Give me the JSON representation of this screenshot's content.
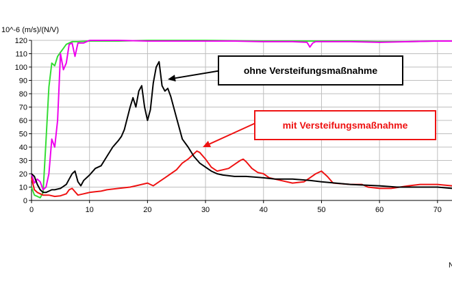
{
  "chart_data": {
    "type": "line",
    "ylabel": "10^-6 (m/s)/(N/V)",
    "xlim": [
      0,
      72.5
    ],
    "ylim": [
      0,
      120
    ],
    "x_ticks": [
      0,
      10,
      20,
      30,
      40,
      50,
      60,
      70
    ],
    "y_ticks": [
      0,
      10,
      20,
      30,
      40,
      50,
      60,
      70,
      80,
      90,
      100,
      110,
      120
    ],
    "grid": true,
    "series": [
      {
        "color": "#33dd33",
        "x": [
          0,
          0.5,
          1,
          1.5,
          2,
          2.5,
          3,
          3.5,
          4,
          4.5,
          5,
          5.5,
          6,
          7,
          8,
          10,
          15,
          20,
          30,
          40,
          48,
          50,
          55,
          60,
          65,
          70,
          72.5
        ],
        "y": [
          10,
          4,
          3,
          2,
          6,
          45,
          85,
          103,
          101,
          108,
          111,
          114,
          117,
          119,
          119,
          119.5,
          119.5,
          120,
          120,
          119.5,
          119.5,
          119.5,
          119.5,
          119,
          119,
          119.5,
          119.5
        ]
      },
      {
        "color": "#ee00ee",
        "x": [
          0,
          0.5,
          1,
          1.5,
          2,
          2.5,
          3,
          3.5,
          4,
          4.5,
          5,
          5.5,
          6,
          6.5,
          7,
          7.5,
          8,
          9,
          10,
          15,
          20,
          25,
          30,
          35,
          40,
          45,
          47.5,
          48,
          48.5,
          49,
          50,
          55,
          60,
          65,
          70,
          72.5
        ],
        "y": [
          20,
          13,
          16,
          14,
          8,
          10,
          20,
          46,
          40,
          60,
          110,
          98,
          103,
          117,
          118,
          108,
          118,
          118,
          120,
          120,
          119.5,
          119.5,
          119.5,
          119.5,
          119,
          119,
          118.5,
          115,
          118,
          119,
          119,
          119,
          118.5,
          119,
          119.5,
          119.5
        ]
      },
      {
        "color": "#ee1111",
        "x": [
          0,
          0.5,
          1,
          2,
          3,
          4,
          5,
          6,
          6.5,
          7,
          8,
          9,
          10,
          11,
          12,
          13,
          15,
          17,
          18,
          19,
          20,
          21,
          22,
          23,
          24,
          25,
          26,
          27,
          28,
          28.5,
          29,
          30,
          31,
          32,
          33,
          34,
          35,
          36,
          36.5,
          37,
          38,
          39,
          40,
          41,
          43,
          45,
          47,
          48,
          49,
          50,
          51,
          52,
          55,
          57,
          58,
          60,
          62,
          65,
          67,
          70,
          72.5
        ],
        "y": [
          17,
          8,
          6,
          4,
          4,
          3,
          3.5,
          5,
          8,
          9,
          4,
          5,
          6,
          6.5,
          7,
          8,
          9,
          10,
          11,
          12,
          13,
          11,
          14,
          17,
          20,
          23,
          28,
          31,
          35,
          37,
          36,
          31,
          25,
          22,
          23,
          24,
          27,
          30,
          31,
          29,
          24,
          21,
          20,
          17,
          15,
          13,
          14,
          17,
          20,
          22,
          18,
          13,
          12,
          12,
          10,
          9,
          9,
          11,
          12,
          12,
          11
        ]
      },
      {
        "color": "#000000",
        "x": [
          0,
          0.5,
          1,
          1.5,
          2,
          2.5,
          3,
          3.5,
          4,
          5,
          6,
          6.5,
          7,
          7.5,
          8,
          8.5,
          9,
          10,
          11,
          12,
          13,
          14,
          15,
          15.5,
          16,
          17,
          17.5,
          18,
          18.5,
          19,
          19.5,
          20,
          20.5,
          21,
          21.5,
          22,
          22.5,
          23,
          23.5,
          24,
          25,
          26,
          27,
          28,
          29,
          30,
          31,
          32,
          33,
          35,
          37,
          40,
          42,
          45,
          48,
          50,
          55,
          60,
          63,
          65,
          70,
          72.5
        ],
        "y": [
          20,
          18,
          12,
          8,
          6,
          6,
          7,
          8,
          8,
          9,
          12,
          16,
          20,
          22,
          14,
          11,
          15,
          19,
          24,
          26,
          33,
          40,
          45,
          48,
          53,
          70,
          77,
          70,
          82,
          86,
          70,
          60,
          68,
          88,
          100,
          104,
          86,
          82,
          84,
          78,
          62,
          46,
          40,
          33,
          28,
          25,
          22,
          20,
          19,
          18,
          18,
          17,
          16,
          16,
          15,
          14,
          12,
          11,
          10,
          10,
          10,
          9
        ]
      }
    ],
    "annotations": [
      {
        "text": "ohne Versteifungsmaßnahme",
        "color": "#000000",
        "arrow_to": [
          23.5,
          82
        ]
      },
      {
        "text": "mit Versteifungsmaßnahme",
        "color": "#ee1111",
        "arrow_to": [
          29.5,
          36
        ]
      }
    ]
  },
  "edge_text": "N"
}
